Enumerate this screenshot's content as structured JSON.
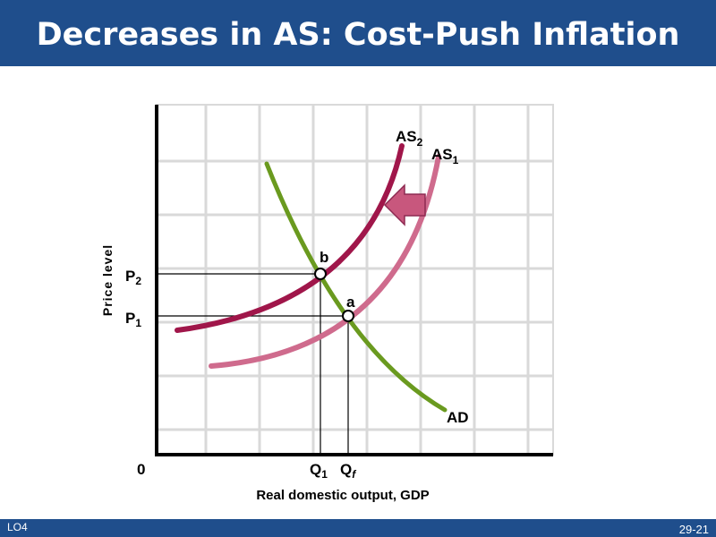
{
  "slide": {
    "title": "Decreases in AS: Cost-Push Inflation",
    "footer_left": "LO4",
    "page_number": "29-21"
  },
  "colors": {
    "title_bar": "#1f4e8c",
    "as2_curve": "#a0164a",
    "as1_curve": "#cf6b8d",
    "ad_curve": "#6a9a1f",
    "shift_arrow": "#c8577d",
    "grid": "#d9d9d9"
  },
  "diagram": {
    "curves": {
      "as2": {
        "label": "AS",
        "subscript": "2"
      },
      "as1": {
        "label": "AS",
        "subscript": "1"
      },
      "ad": {
        "label": "AD"
      }
    },
    "points": {
      "b": "b",
      "a": "a"
    },
    "axis": {
      "y_label": "Price level",
      "x_label": "Real domestic output, GDP",
      "origin": "0"
    },
    "ticks": {
      "p2": {
        "label": "P",
        "subscript": "2"
      },
      "p1": {
        "label": "P",
        "subscript": "1"
      },
      "q1": {
        "label": "Q",
        "subscript": "1"
      },
      "qf": {
        "label": "Q",
        "subscript": "f"
      }
    },
    "shift_arrow_icon": "left-arrow-icon"
  }
}
